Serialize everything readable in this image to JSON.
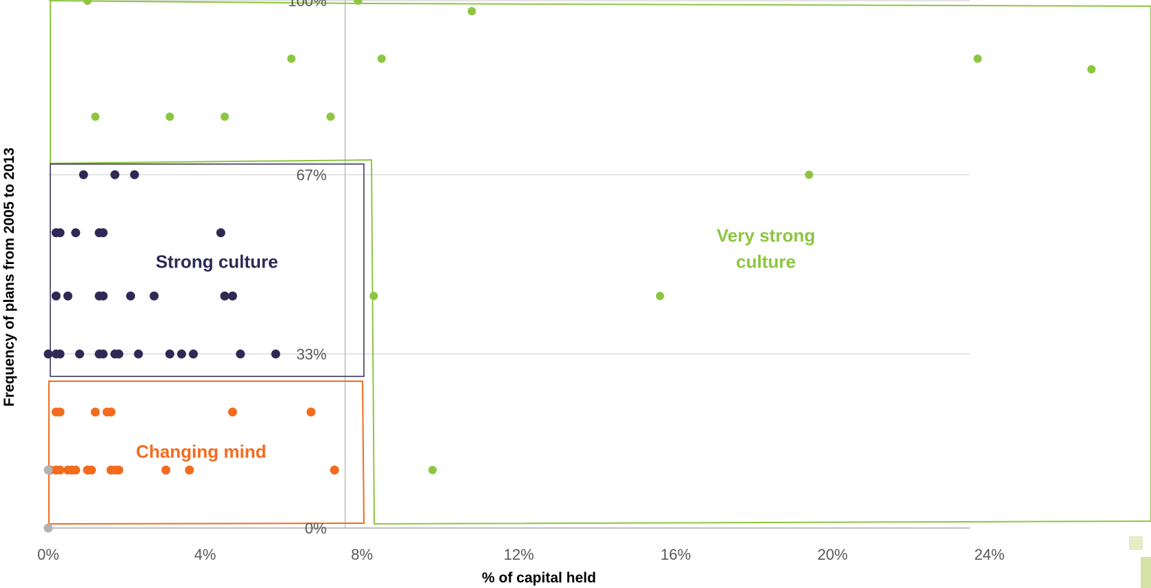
{
  "chart_data": {
    "type": "scatter",
    "xlabel": "% of capital held",
    "ylabel": "Frequency of plans from 2005 to 2013",
    "x_ticks": [
      "0%",
      "4%",
      "8%",
      "12%",
      "16%",
      "20%",
      "24%"
    ],
    "y_ticks": [
      "0%",
      "33%",
      "67%",
      "100%"
    ],
    "xlim": [
      0,
      28
    ],
    "ylim": [
      0,
      100
    ],
    "grid": "horizontal",
    "annotations": [
      {
        "text": "Strong culture",
        "color": "#2e2a55",
        "x": 4.3,
        "y": 50.5
      },
      {
        "text": "Changing mind",
        "color": "#f36b1c",
        "x": 3.9,
        "y": 14.5
      },
      {
        "text": "Very strong",
        "color": "#8cc63f",
        "x": 18.3,
        "y": 55.5
      },
      {
        "text": "culture",
        "color": "#8cc63f",
        "x": 18.3,
        "y": 50.5
      }
    ],
    "series": [
      {
        "color": "#8cc63f",
        "x": [
          1.0,
          7.9,
          10.8,
          6.2,
          8.5,
          23.7,
          26.6,
          1.2,
          3.1,
          4.5,
          7.2,
          19.4,
          8.3,
          15.6,
          9.8
        ],
        "y": [
          100,
          100,
          98,
          89,
          89,
          89,
          87,
          78,
          78,
          78,
          78,
          67,
          44,
          44,
          11
        ]
      },
      {
        "color": "#2e2a55",
        "x": [
          0.9,
          1.7,
          2.2,
          0.2,
          0.3,
          0.7,
          1.3,
          1.4,
          4.4,
          0.2,
          0.5,
          1.3,
          1.4,
          2.1,
          2.7,
          4.5,
          4.7,
          0.0,
          0.2,
          0.3,
          0.8,
          1.3,
          1.4,
          1.7,
          1.8,
          2.3,
          3.1,
          3.4,
          3.7,
          4.9,
          5.8
        ],
        "y": [
          67,
          67,
          67,
          56,
          56,
          56,
          56,
          56,
          56,
          44,
          44,
          44,
          44,
          44,
          44,
          44,
          44,
          33,
          33,
          33,
          33,
          33,
          33,
          33,
          33,
          33,
          33,
          33,
          33,
          33,
          33
        ]
      },
      {
        "color": "#f36b1c",
        "x": [
          0.2,
          0.3,
          1.2,
          1.5,
          1.6,
          4.7,
          6.7,
          0.05,
          0.2,
          0.3,
          0.5,
          0.6,
          0.7,
          1.0,
          1.1,
          1.6,
          1.7,
          1.8,
          3.0,
          3.6,
          7.3
        ],
        "y": [
          22,
          22,
          22,
          22,
          22,
          22,
          22,
          11,
          11,
          11,
          11,
          11,
          11,
          11,
          11,
          11,
          11,
          11,
          11,
          11,
          11
        ]
      },
      {
        "color": "#b3b3b3",
        "x": [
          0.0,
          0.0
        ],
        "y": [
          0,
          11
        ]
      }
    ]
  }
}
